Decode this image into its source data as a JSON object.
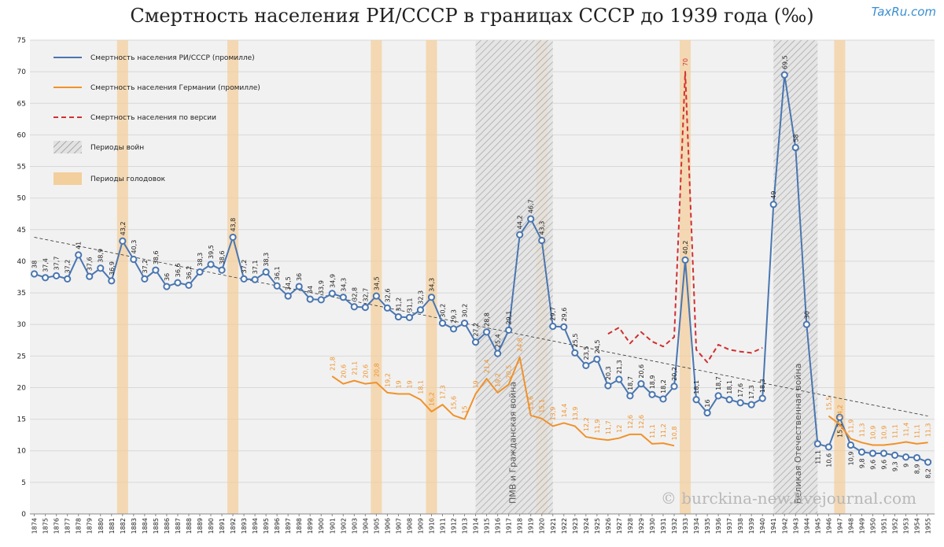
{
  "chart_data": {
    "type": "line",
    "title": "Смертность населения РИ/СССР  в границах СССР до 1939 года (‰)",
    "watermark": "TaxRu.com",
    "credit": "© burckina-new.livejournal.com",
    "x": [
      1874,
      1875,
      1876,
      1877,
      1878,
      1879,
      1880,
      1881,
      1882,
      1883,
      1884,
      1885,
      1886,
      1887,
      1888,
      1889,
      1890,
      1891,
      1892,
      1893,
      1894,
      1895,
      1896,
      1897,
      1898,
      1899,
      1900,
      1901,
      1902,
      1903,
      1904,
      1905,
      1906,
      1907,
      1908,
      1909,
      1910,
      1911,
      1912,
      1913,
      1914,
      1915,
      1916,
      1917,
      1918,
      1919,
      1920,
      1921,
      1922,
      1923,
      1924,
      1925,
      1926,
      1927,
      1928,
      1929,
      1930,
      1931,
      1932,
      1933,
      1934,
      1935,
      1936,
      1937,
      1938,
      1939,
      1940,
      1941,
      1942,
      1943,
      1944,
      1945,
      1946,
      1947,
      1948,
      1949,
      1950,
      1951,
      1952,
      1953,
      1954,
      1955
    ],
    "xlim": [
      1873.6,
      1955.6
    ],
    "ylim": [
      0,
      75
    ],
    "yticks": [
      0,
      5,
      10,
      15,
      20,
      25,
      30,
      35,
      40,
      45,
      50,
      55,
      60,
      65,
      70,
      75
    ],
    "grid": true,
    "series": [
      {
        "name": "Смертность населения РИ/СССР (промилле)",
        "color": "#4a76b0",
        "style": "solid",
        "markers": true,
        "values": [
          38,
          37.4,
          37.7,
          37.2,
          41,
          37.6,
          38.9,
          36.9,
          43.2,
          40.3,
          37.2,
          38.6,
          36,
          36.6,
          36.2,
          38.3,
          39.5,
          38.6,
          43.8,
          37.2,
          37.1,
          38.3,
          36.1,
          34.5,
          36,
          34,
          33.9,
          34.9,
          34.3,
          32.8,
          32.7,
          34.5,
          32.6,
          31.2,
          31.1,
          32.3,
          34.3,
          30.2,
          29.3,
          30.2,
          27.2,
          28.8,
          25.4,
          29.1,
          44.2,
          46.7,
          43.3,
          29.7,
          29.6,
          25.5,
          23.5,
          24.5,
          20.3,
          21.3,
          18.7,
          20.6,
          18.9,
          18.2,
          20.2,
          40.2,
          18.1,
          16,
          18.7,
          18.1,
          17.6,
          17.3,
          18.3,
          49,
          69.5,
          58,
          30,
          11.1,
          10.6,
          15.3,
          10.9,
          9.8,
          9.6,
          9.6,
          9.3,
          9,
          8.9,
          8.2
        ],
        "value_labels": [
          "38",
          "37,4",
          "37,7",
          "37,2",
          "41",
          "37,6",
          "38,9",
          "36,9",
          "43,2",
          "40,3",
          "37,2",
          "38,6",
          "36",
          "36,6",
          "36,2",
          "38,3",
          "39,5",
          "38,6",
          "43,8",
          "37,2",
          "37,1",
          "38,3",
          "36,1",
          "34,5",
          "36",
          "34",
          "33,9",
          "34,9",
          "34,3",
          "32,8",
          "32,7",
          "34,5",
          "32,6",
          "31,2",
          "31,1",
          "32,3",
          "34,3",
          "30,2",
          "29,3",
          "30,2",
          "27,2",
          "28,8",
          "25,4",
          "29,1",
          "44,2",
          "46,7",
          "43,3",
          "29,7",
          "29,6",
          "25,5",
          "23,5",
          "24,5",
          "20,3",
          "21,3",
          "18,7",
          "20,6",
          "18,9",
          "18,2",
          "20,2",
          "40,2",
          "18,1",
          "16",
          "18,7",
          "18,1",
          "17,6",
          "17,3",
          "18,3",
          "49",
          "69,5",
          "58",
          "30",
          "11,1",
          "10,6",
          "15,3",
          "10,9",
          "9,8",
          "9,6",
          "9,6",
          "9,3",
          "9",
          "8,9",
          "8,2"
        ]
      },
      {
        "name": "Смертность населения Германии (промилле)",
        "color": "#f0922b",
        "style": "solid",
        "markers": false,
        "x": [
          1901,
          1902,
          1903,
          1904,
          1905,
          1906,
          1907,
          1908,
          1909,
          1910,
          1911,
          1912,
          1913,
          1914,
          1915,
          1916,
          1917,
          1918,
          1919,
          1920,
          1921,
          1922,
          1923,
          1924,
          1925,
          1926,
          1927,
          1928,
          1929,
          1930,
          1931,
          1932,
          1933,
          1934,
          1935,
          1936,
          1937,
          1938,
          1939,
          1940,
          1941,
          1942,
          1943,
          1944,
          1945,
          1946,
          1947,
          1948,
          1949,
          1950,
          1951,
          1952,
          1953,
          1954,
          1955
        ],
        "values": [
          21.8,
          20.6,
          21.1,
          20.6,
          20.8,
          19.2,
          19,
          19,
          18.1,
          16.2,
          17.3,
          15.6,
          15,
          19,
          21.4,
          19.2,
          20.5,
          24.8,
          15.6,
          15.1,
          13.9,
          14.4,
          13.9,
          12.2,
          11.9,
          11.7,
          12,
          12.6,
          12.6,
          11.1,
          11.2,
          10.8,
          null,
          null,
          null,
          null,
          null,
          null,
          null,
          null,
          null,
          null,
          null,
          null,
          null,
          15.5,
          14.2,
          11.9,
          11.3,
          10.9,
          10.9,
          11.1,
          11.4,
          11.1,
          11.3
        ],
        "value_labels": [
          "21,8",
          "20,6",
          "21,1",
          "20,6",
          "20,8",
          "19,2",
          "19",
          "19",
          "18,1",
          "16,2",
          "17,3",
          "15,6",
          "15",
          "19",
          "21,4",
          "19,2",
          "20,5",
          "24,8",
          "15,6",
          "15,1",
          "13,9",
          "14,4",
          "13,9",
          "12,2",
          "11,9",
          "11,7",
          "12",
          "12,6",
          "12,6",
          "11,1",
          "11,2",
          "10,8",
          null,
          null,
          null,
          null,
          null,
          null,
          null,
          null,
          null,
          null,
          null,
          null,
          null,
          "15,5",
          "14,2",
          "11,9",
          "11,3",
          "10,9",
          "10,9",
          "11,1",
          "11,4",
          "11,1",
          "11,3"
        ]
      },
      {
        "name": "Смертность населения по версии",
        "color": "#d03030",
        "style": "dashed",
        "markers": false,
        "x": [
          1926,
          1927,
          1928,
          1929,
          1930,
          1931,
          1932,
          1933,
          1934,
          1935,
          1936,
          1937,
          1938,
          1939,
          1940
        ],
        "values": [
          28.5,
          29.5,
          27,
          28.8,
          27.3,
          26.5,
          28,
          70,
          26,
          24,
          26.8,
          26,
          25.7,
          25.5,
          26.3
        ],
        "value_labels": [
          null,
          null,
          null,
          null,
          null,
          null,
          null,
          "70",
          null,
          null,
          null,
          null,
          null,
          null,
          null
        ]
      }
    ],
    "trend": {
      "x": [
        1874,
        1955
      ],
      "values": [
        43.8,
        15.5
      ],
      "color": "#333333"
    },
    "war_periods": {
      "name": "Периоды войн",
      "ranges": [
        [
          1914,
          1921
        ],
        [
          1941,
          1945
        ]
      ],
      "labels": [
        "ПМВ и Гражданская война",
        "Великая Отечественная война"
      ]
    },
    "famine_periods": {
      "name": "Периоды голодовок",
      "years": [
        1882,
        1892,
        1905,
        1910,
        1920,
        1933,
        1947
      ],
      "color": "#f3cf9d"
    }
  }
}
